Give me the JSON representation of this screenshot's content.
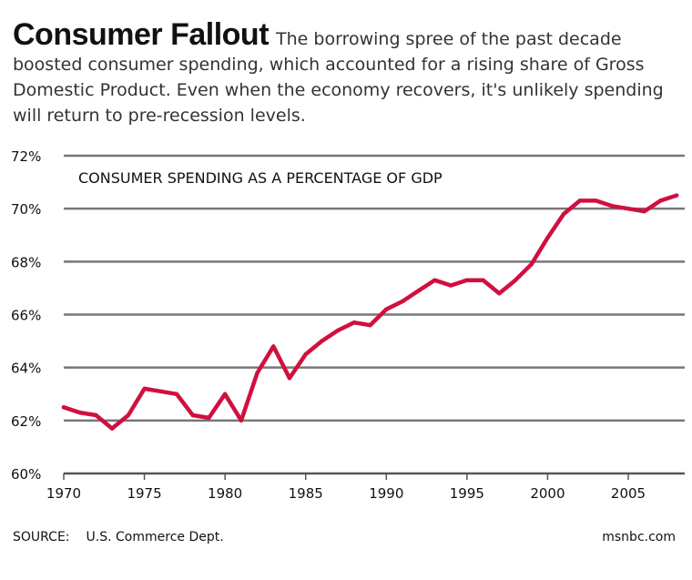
{
  "header": {
    "headline": "Consumer Fallout",
    "description": "The borrowing spree of the past decade boosted consumer spending, which accounted for a rising share of Gross Domestic Product. Even when the economy recovers,  it's unlikely spending will return to pre-recession levels."
  },
  "footer": {
    "source_label": "SOURCE:",
    "source": "U.S. Commerce Dept.",
    "credit": "msnbc.com"
  },
  "colors": {
    "line": "#d0103f",
    "grid": "#777777",
    "axis": "#555555"
  },
  "chart_data": {
    "type": "line",
    "title": "CONSUMER SPENDING AS A PERCENTAGE OF GDP",
    "xlabel": "",
    "ylabel": "",
    "xlim": [
      1970,
      2008.5
    ],
    "ylim": [
      60,
      72
    ],
    "x_ticks": [
      1970,
      1975,
      1980,
      1985,
      1990,
      1995,
      2000,
      2005
    ],
    "y_ticks": [
      60,
      62,
      64,
      66,
      68,
      70,
      72
    ],
    "y_tick_labels": [
      "60%",
      "62%",
      "64%",
      "66%",
      "68%",
      "70%",
      "72%"
    ],
    "grid": "horizontal",
    "legend": "none",
    "series": [
      {
        "x": [
          1970,
          1971,
          1972,
          1973,
          1974,
          1975,
          1976,
          1977,
          1978,
          1979,
          1980,
          1981,
          1982,
          1983,
          1984,
          1985,
          1986,
          1987,
          1988,
          1989,
          1990,
          1991,
          1992,
          1993,
          1994,
          1995,
          1996,
          1997,
          1998,
          1999,
          2000,
          2001,
          2002,
          2003,
          2004,
          2005,
          2006,
          2007,
          2008
        ],
        "values": [
          62.5,
          62.3,
          62.2,
          61.7,
          62.2,
          63.2,
          63.1,
          63.0,
          62.2,
          62.1,
          63.0,
          62.0,
          63.8,
          64.8,
          63.6,
          64.5,
          65.0,
          65.4,
          65.7,
          65.6,
          66.2,
          66.5,
          66.9,
          67.3,
          67.1,
          67.3,
          67.3,
          66.8,
          67.3,
          67.9,
          68.9,
          69.8,
          70.3,
          70.3,
          70.1,
          70.0,
          69.9,
          70.3,
          70.5
        ]
      }
    ]
  }
}
